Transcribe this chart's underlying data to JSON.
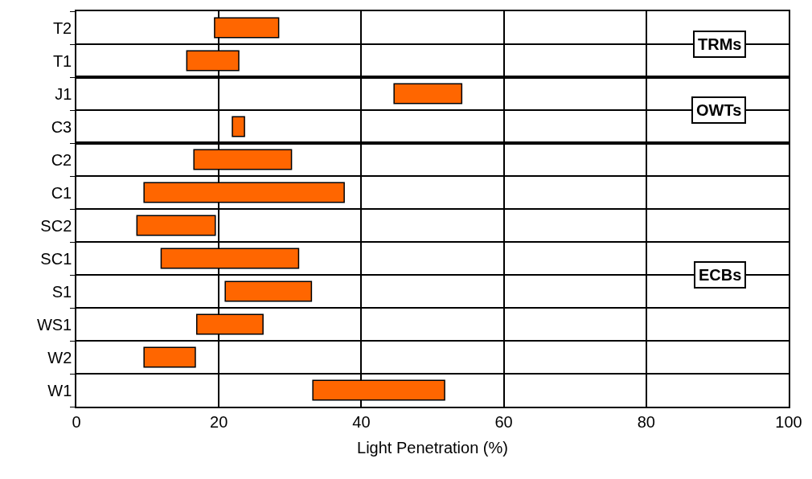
{
  "chart_data": {
    "type": "bar",
    "orientation": "horizontal",
    "xlabel": "Light Penetration (%)",
    "categories": [
      "T2",
      "T1",
      "J1",
      "C3",
      "C2",
      "C1",
      "SC2",
      "SC1",
      "S1",
      "WS1",
      "W2",
      "W1"
    ],
    "base": [
      19.4,
      15.5,
      44.6,
      21.9,
      16.5,
      9.5,
      8.5,
      11.9,
      20.9,
      16.9,
      9.5,
      33.2
    ],
    "values": [
      9.0,
      7.3,
      9.5,
      1.7,
      13.7,
      28.1,
      11.0,
      19.3,
      12.1,
      9.3,
      7.2,
      18.5
    ],
    "color": "#ff6600",
    "xlim": [
      0,
      100
    ],
    "xticks": [
      0,
      20,
      40,
      60,
      80,
      100
    ],
    "grid": true,
    "legend": false,
    "annotations": [
      "TRMs",
      "OWTs",
      "ECBs"
    ]
  }
}
